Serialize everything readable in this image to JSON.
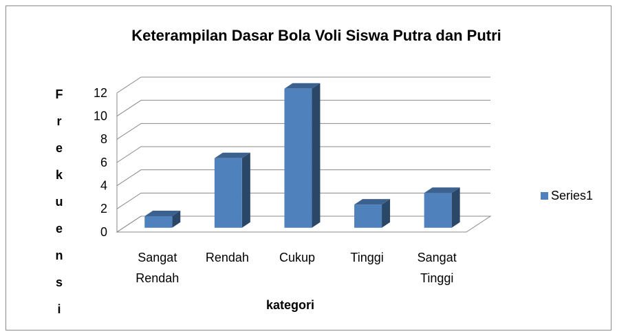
{
  "chart_data": {
    "type": "bar3d",
    "title": "Keterampilan Dasar Bola Voli Siswa Putra dan Putri",
    "categories": [
      "Sangat Rendah",
      "Rendah",
      "Cukup",
      "Tinggi",
      "Sangat Tinggi"
    ],
    "series": [
      {
        "name": "Series1",
        "color": "#4f81bd",
        "values": [
          1,
          6,
          12,
          2,
          3
        ]
      }
    ],
    "xlabel": "kategori",
    "ylabel": "Frekuensi",
    "ylim": [
      0,
      12
    ],
    "yticks": [
      0,
      2,
      4,
      6,
      8,
      10,
      12
    ],
    "grid": true,
    "legend": "right"
  }
}
